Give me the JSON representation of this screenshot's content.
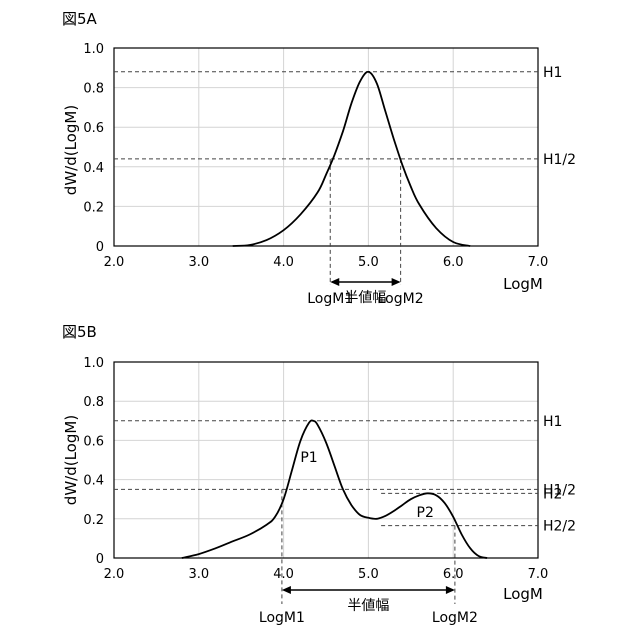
{
  "chart_data": [
    {
      "type": "line",
      "figure_label": "図5A",
      "xlabel": "LogM",
      "ylabel": "dW/d(LogM)",
      "xlim": [
        2.0,
        7.0
      ],
      "ylim": [
        0,
        1.0
      ],
      "x_ticks": [
        "2.0",
        "3.0",
        "4.0",
        "5.0",
        "6.0",
        "7.0"
      ],
      "y_ticks": [
        "0",
        "0.2",
        "0.4",
        "0.6",
        "0.8",
        "1.0"
      ],
      "grid": true,
      "x": [
        3.4,
        3.6,
        3.8,
        4.0,
        4.2,
        4.4,
        4.5,
        4.6,
        4.7,
        4.8,
        4.9,
        5.0,
        5.1,
        5.2,
        5.3,
        5.4,
        5.5,
        5.6,
        5.8,
        6.0,
        6.2
      ],
      "series": [
        {
          "values": [
            0.0,
            0.005,
            0.03,
            0.08,
            0.16,
            0.27,
            0.36,
            0.46,
            0.58,
            0.72,
            0.83,
            0.88,
            0.82,
            0.68,
            0.54,
            0.41,
            0.3,
            0.21,
            0.09,
            0.02,
            0.0
          ]
        }
      ],
      "h_lines": [
        {
          "label": "H1",
          "y": 0.88,
          "x_from": 2.0
        },
        {
          "label": "H1/2",
          "y": 0.44,
          "x_from": 2.0
        }
      ],
      "v_lines": [
        {
          "label": "LogM1",
          "x": 4.55,
          "y_to": 0.44
        },
        {
          "label": "LogM2",
          "x": 5.38,
          "y_to": 0.44
        }
      ],
      "width_arrow": {
        "label": "半値幅",
        "x_from": 4.55,
        "x_to": 5.38
      }
    },
    {
      "type": "line",
      "figure_label": "図5B",
      "xlabel": "LogM",
      "ylabel": "dW/d(LogM)",
      "xlim": [
        2.0,
        7.0
      ],
      "ylim": [
        0,
        1.0
      ],
      "x_ticks": [
        "2.0",
        "3.0",
        "4.0",
        "5.0",
        "6.0",
        "7.0"
      ],
      "y_ticks": [
        "0",
        "0.2",
        "0.4",
        "0.6",
        "0.8",
        "1.0"
      ],
      "grid": true,
      "x": [
        2.8,
        3.0,
        3.2,
        3.4,
        3.6,
        3.8,
        3.9,
        4.0,
        4.1,
        4.2,
        4.3,
        4.35,
        4.4,
        4.5,
        4.6,
        4.7,
        4.8,
        4.9,
        5.0,
        5.1,
        5.2,
        5.3,
        5.4,
        5.5,
        5.6,
        5.7,
        5.8,
        5.9,
        6.0,
        6.1,
        6.2,
        6.3,
        6.4
      ],
      "series": [
        {
          "values": [
            0.0,
            0.02,
            0.05,
            0.085,
            0.12,
            0.17,
            0.21,
            0.3,
            0.45,
            0.6,
            0.69,
            0.7,
            0.68,
            0.59,
            0.47,
            0.35,
            0.27,
            0.22,
            0.205,
            0.2,
            0.215,
            0.24,
            0.27,
            0.3,
            0.32,
            0.33,
            0.32,
            0.28,
            0.21,
            0.12,
            0.05,
            0.01,
            0.0
          ]
        }
      ],
      "h_lines": [
        {
          "label": "H1",
          "y": 0.7,
          "x_from": 2.0
        },
        {
          "label": "H1/2",
          "y": 0.35,
          "x_from": 2.0
        },
        {
          "label": "H2",
          "y": 0.33,
          "x_from": 5.15
        },
        {
          "label": "H2/2",
          "y": 0.165,
          "x_from": 5.15
        }
      ],
      "v_lines": [
        {
          "label": "LogM1",
          "x": 3.98,
          "y_to": 0.35
        },
        {
          "label": "LogM2",
          "x": 6.02,
          "y_to": 0.165
        }
      ],
      "peak_labels": [
        {
          "label": "P1",
          "x": 4.3,
          "y": 0.49
        },
        {
          "label": "P2",
          "x": 5.67,
          "y": 0.21
        }
      ],
      "width_arrow": {
        "label": "半値幅",
        "x_from": 3.98,
        "x_to": 6.02
      }
    }
  ]
}
